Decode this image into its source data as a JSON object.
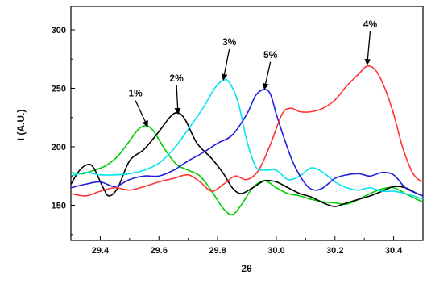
{
  "chart_data": {
    "type": "line",
    "title": "",
    "xlabel": "2θ",
    "ylabel": "I (A.U.)",
    "xlim": [
      29.3,
      30.5
    ],
    "ylim": [
      120,
      320
    ],
    "x_ticks": [
      29.4,
      29.6,
      29.8,
      30.0,
      30.2,
      30.4
    ],
    "x_tick_labels": [
      "29.4",
      "29.6",
      "29.8",
      "30.0",
      "30.2",
      "30.4"
    ],
    "y_ticks": [
      150,
      200,
      250,
      300
    ],
    "y_tick_labels": [
      "150",
      "200",
      "250",
      "300"
    ],
    "grid": false,
    "legend": "none",
    "series": [
      {
        "color": "#00cc00",
        "x": [
          29.3,
          29.34,
          29.38,
          29.42,
          29.46,
          29.5,
          29.53,
          29.555,
          29.58,
          29.62,
          29.66,
          29.7,
          29.74,
          29.78,
          29.82,
          29.85,
          29.88,
          29.92,
          29.96,
          30.0,
          30.04,
          30.08,
          30.12,
          30.16,
          30.2,
          30.24,
          30.28,
          30.32,
          30.36,
          30.4,
          30.44,
          30.48,
          30.5
        ],
        "y": [
          178,
          177,
          180,
          184,
          192,
          205,
          215,
          218,
          214,
          198,
          185,
          180,
          175,
          162,
          147,
          142,
          150,
          165,
          171,
          165,
          160,
          158,
          155,
          153,
          152,
          151,
          155,
          160,
          164,
          165,
          160,
          155,
          153
        ]
      },
      {
        "color": "#000000",
        "x": [
          29.3,
          29.33,
          29.36,
          29.38,
          29.41,
          29.43,
          29.46,
          29.5,
          29.55,
          29.6,
          29.64,
          29.665,
          29.69,
          29.73,
          29.78,
          29.82,
          29.85,
          29.88,
          29.92,
          29.96,
          30.0,
          30.04,
          30.08,
          30.12,
          30.16,
          30.2,
          30.24,
          30.28,
          30.32,
          30.36,
          30.4,
          30.44,
          30.48,
          30.5
        ],
        "y": [
          168,
          180,
          185,
          181,
          165,
          158,
          165,
          188,
          198,
          213,
          226,
          229,
          223,
          203,
          190,
          177,
          165,
          160,
          165,
          171,
          170,
          165,
          160,
          157,
          152,
          149,
          152,
          155,
          158,
          162,
          166,
          165,
          160,
          158
        ]
      },
      {
        "color": "#00e5ee",
        "x": [
          29.3,
          29.35,
          29.4,
          29.45,
          29.5,
          29.55,
          29.6,
          29.65,
          29.7,
          29.75,
          29.79,
          29.82,
          29.84,
          29.87,
          29.9,
          29.93,
          29.96,
          30.0,
          30.04,
          30.08,
          30.12,
          30.16,
          30.2,
          30.24,
          30.28,
          30.32,
          30.36,
          30.4,
          30.44,
          30.48,
          30.5
        ],
        "y": [
          175,
          178,
          176,
          176,
          177,
          180,
          186,
          198,
          215,
          233,
          250,
          257,
          255,
          238,
          205,
          183,
          180,
          180,
          172,
          175,
          182,
          178,
          170,
          165,
          163,
          165,
          162,
          162,
          160,
          157,
          155
        ]
      },
      {
        "color": "#1f1fdd",
        "x": [
          29.3,
          29.35,
          29.4,
          29.45,
          29.5,
          29.55,
          29.6,
          29.65,
          29.7,
          29.75,
          29.8,
          29.85,
          29.9,
          29.93,
          29.96,
          29.98,
          30.0,
          30.03,
          30.06,
          30.1,
          30.13,
          30.16,
          30.2,
          30.24,
          30.28,
          30.32,
          30.36,
          30.4,
          30.44,
          30.48,
          30.5
        ],
        "y": [
          165,
          168,
          170,
          166,
          172,
          175,
          175,
          180,
          188,
          195,
          203,
          210,
          228,
          244,
          249,
          245,
          228,
          205,
          185,
          168,
          163,
          165,
          173,
          176,
          177,
          175,
          178,
          176,
          165,
          160,
          158
        ]
      },
      {
        "color": "#ff3333",
        "x": [
          29.3,
          29.35,
          29.4,
          29.45,
          29.5,
          29.55,
          29.6,
          29.65,
          29.7,
          29.74,
          29.78,
          29.82,
          29.86,
          29.9,
          29.94,
          29.98,
          30.02,
          30.05,
          30.08,
          30.12,
          30.16,
          30.2,
          30.24,
          30.28,
          30.31,
          30.34,
          30.37,
          30.4,
          30.43,
          30.46,
          30.48,
          30.5
        ],
        "y": [
          160,
          158,
          162,
          165,
          163,
          166,
          170,
          173,
          176,
          170,
          162,
          168,
          175,
          172,
          180,
          202,
          228,
          233,
          230,
          230,
          233,
          240,
          252,
          262,
          269,
          265,
          250,
          228,
          200,
          180,
          173,
          170
        ]
      }
    ],
    "annotations": [
      {
        "text": "1%",
        "x": 29.52,
        "y": 243,
        "arrow_to": [
          29.56,
          218
        ]
      },
      {
        "text": "2%",
        "x": 29.66,
        "y": 256,
        "arrow_to": [
          29.665,
          229
        ]
      },
      {
        "text": "3%",
        "x": 29.84,
        "y": 287,
        "arrow_to": [
          29.82,
          258
        ]
      },
      {
        "text": "5%",
        "x": 29.98,
        "y": 276,
        "arrow_to": [
          29.96,
          250
        ]
      },
      {
        "text": "4%",
        "x": 30.32,
        "y": 302,
        "arrow_to": [
          30.31,
          271
        ]
      }
    ]
  }
}
